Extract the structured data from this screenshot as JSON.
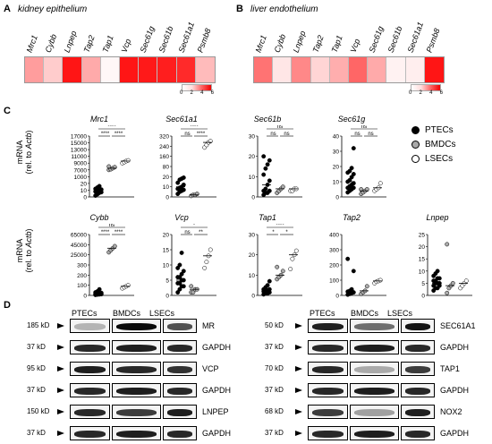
{
  "panels": {
    "A": {
      "letter": "A",
      "title": "kidney epithelium"
    },
    "B": {
      "letter": "B",
      "title": "liver endothelium"
    },
    "C": {
      "letter": "C"
    },
    "D": {
      "letter": "D"
    }
  },
  "heatmap_genes": [
    "Mrc1",
    "Cybb",
    "Lnpep",
    "Tap2",
    "Tap1",
    "Vcp",
    "Sec61g",
    "Sec61b",
    "Sec61a1",
    "Psmb8"
  ],
  "heatmap_kidney": [
    2.3,
    1.2,
    5.5,
    2.0,
    0.2,
    5.5,
    5.4,
    5.3,
    5.0,
    1.6
  ],
  "heatmap_liver": [
    3.3,
    0.6,
    2.8,
    1.0,
    1.9,
    3.6,
    2.0,
    0.3,
    0.4,
    5.5
  ],
  "heat_legend": {
    "ticks": [
      "0",
      "2",
      "4",
      "6"
    ]
  },
  "colors": {
    "heat_max": "#e00000",
    "ptec": "#000000",
    "bmdc": "#aaaaaa",
    "lsec": "#ffffff"
  },
  "ylabel": {
    "line1": "mRNA",
    "line2a": "(rel. to ",
    "line2b": "Actb",
    ")": ")"
  },
  "legend": {
    "ptec": "PTECs",
    "bmdc": "BMDCs",
    "lsec": "LSECs"
  },
  "chart_data": [
    {
      "type": "scatter",
      "title": "Mrc1",
      "ylim": [
        0,
        17000
      ],
      "yticks": [
        "0",
        "10",
        "20",
        "1000",
        "7000",
        "9000",
        "11000",
        "13000",
        "15000",
        "17000"
      ],
      "broken": true,
      "series": [
        {
          "name": "PTECs",
          "values": [
            2,
            4,
            6,
            7,
            8,
            9,
            10,
            11,
            12,
            14,
            16
          ]
        },
        {
          "name": "BMDCs",
          "values": [
            7000,
            7200,
            7500,
            7800,
            8000
          ]
        },
        {
          "name": "LSECs",
          "values": [
            9000,
            9300,
            9600,
            9800
          ]
        }
      ],
      "sig": [
        [
          "****",
          "1",
          "3"
        ],
        [
          "****",
          "1",
          "2"
        ],
        [
          "****",
          "2",
          "3"
        ]
      ]
    },
    {
      "type": "scatter",
      "title": "Sec61a1",
      "ylim": [
        0,
        320
      ],
      "yticks": [
        "0",
        "10",
        "20",
        "80",
        "160",
        "240",
        "320"
      ],
      "broken": true,
      "series": [
        {
          "name": "PTECs",
          "values": [
            3,
            5,
            6,
            7,
            8,
            9,
            10,
            12,
            14,
            17,
            18,
            19
          ]
        },
        {
          "name": "BMDCs",
          "values": [
            1,
            2,
            2,
            3
          ]
        },
        {
          "name": "LSECs",
          "values": [
            230,
            250,
            270,
            280
          ]
        }
      ],
      "sig": [
        [
          "****",
          "1",
          "3"
        ],
        [
          "ns",
          "1",
          "2"
        ],
        [
          "****",
          "2",
          "3"
        ]
      ]
    },
    {
      "type": "scatter",
      "title": "Sec61b",
      "ylim": [
        0,
        30
      ],
      "yticks": [
        "0",
        "10",
        "20",
        "30"
      ],
      "series": [
        {
          "name": "PTECs",
          "values": [
            1,
            2,
            2,
            3,
            3,
            4,
            6,
            8,
            11,
            14,
            16,
            18,
            20
          ]
        },
        {
          "name": "BMDCs",
          "values": [
            2,
            3,
            4,
            5
          ]
        },
        {
          "name": "LSECs",
          "values": [
            3,
            3,
            4,
            4
          ]
        }
      ],
      "sig": [
        [
          "ns",
          "1",
          "3"
        ],
        [
          "ns",
          "1",
          "2"
        ],
        [
          "ns",
          "2",
          "3"
        ]
      ]
    },
    {
      "type": "scatter",
      "title": "Sec61g",
      "ylim": [
        0,
        40
      ],
      "yticks": [
        "0",
        "10",
        "20",
        "30",
        "40"
      ],
      "series": [
        {
          "name": "PTECs",
          "values": [
            3,
            4,
            5,
            6,
            6,
            7,
            8,
            9,
            10,
            11,
            13,
            15,
            16,
            17,
            19,
            32
          ]
        },
        {
          "name": "BMDCs",
          "values": [
            2,
            3,
            4,
            5,
            5
          ]
        },
        {
          "name": "LSECs",
          "values": [
            4,
            5,
            6,
            9
          ]
        }
      ],
      "sig": [
        [
          "ns",
          "1",
          "3"
        ],
        [
          "ns",
          "1",
          "2"
        ],
        [
          "ns",
          "2",
          "3"
        ]
      ]
    },
    {
      "type": "scatter",
      "title": "Cybb",
      "ylim": [
        0,
        65000
      ],
      "yticks": [
        "0",
        "100",
        "200",
        "300",
        "25000",
        "45000",
        "65000"
      ],
      "broken": true,
      "series": [
        {
          "name": "PTECs",
          "values": [
            5,
            8,
            10,
            12,
            15,
            18,
            20,
            25,
            30,
            40,
            60
          ]
        },
        {
          "name": "BMDCs",
          "values": [
            30000,
            34000,
            38000,
            42000
          ]
        },
        {
          "name": "LSECs",
          "values": [
            70,
            80,
            90,
            100
          ]
        }
      ],
      "sig": [
        [
          "ns",
          "1",
          "3"
        ],
        [
          "****",
          "1",
          "2"
        ],
        [
          "****",
          "2",
          "3"
        ]
      ]
    },
    {
      "type": "scatter",
      "title": "Vcp",
      "ylim": [
        0,
        20
      ],
      "yticks": [
        "0",
        "5",
        "10",
        "15",
        "20"
      ],
      "series": [
        {
          "name": "PTECs",
          "values": [
            1,
            2,
            3,
            3,
            4,
            4,
            5,
            5,
            6,
            6,
            7,
            8,
            9,
            10,
            14
          ]
        },
        {
          "name": "BMDCs",
          "values": [
            1,
            1,
            2,
            2,
            3
          ]
        },
        {
          "name": "LSECs",
          "values": [
            9,
            11,
            13,
            15
          ]
        }
      ],
      "sig": [
        [
          "*",
          "1",
          "3"
        ],
        [
          "ns",
          "1",
          "2"
        ],
        [
          "**",
          "2",
          "3"
        ]
      ]
    },
    {
      "type": "scatter",
      "title": "Tap1",
      "ylim": [
        0,
        30
      ],
      "yticks": [
        "0",
        "10",
        "20",
        "30"
      ],
      "series": [
        {
          "name": "PTECs",
          "values": [
            0.5,
            1,
            1,
            1.5,
            2,
            2,
            2.5,
            3,
            3,
            4,
            5,
            7
          ]
        },
        {
          "name": "BMDCs",
          "values": [
            8,
            9,
            10,
            12,
            14
          ]
        },
        {
          "name": "LSECs",
          "values": [
            13,
            18,
            20,
            22
          ]
        }
      ],
      "sig": [
        [
          "****",
          "1",
          "3"
        ],
        [
          "*",
          "1",
          "2"
        ],
        [
          "*",
          "2",
          "3"
        ]
      ]
    },
    {
      "type": "scatter",
      "title": "Tap2",
      "ylim": [
        0,
        400
      ],
      "yticks": [
        "0",
        "100",
        "200",
        "300",
        "400"
      ],
      "series": [
        {
          "name": "PTECs",
          "values": [
            5,
            10,
            15,
            20,
            25,
            30,
            40,
            160,
            240
          ]
        },
        {
          "name": "BMDCs",
          "values": [
            10,
            20,
            30,
            60
          ]
        },
        {
          "name": "LSECs",
          "values": [
            80,
            90,
            95,
            100
          ]
        }
      ],
      "sig": []
    },
    {
      "type": "scatter",
      "title": "Lnpep",
      "ylim": [
        0,
        25
      ],
      "yticks": [
        "0",
        "5",
        "10",
        "15",
        "20",
        "25"
      ],
      "series": [
        {
          "name": "PTECs",
          "values": [
            2,
            3,
            3,
            4,
            4,
            5,
            5,
            5,
            6,
            6,
            7,
            7,
            8,
            9,
            10
          ]
        },
        {
          "name": "BMDCs",
          "values": [
            1,
            3,
            4,
            5,
            21
          ]
        },
        {
          "name": "LSECs",
          "values": [
            3,
            4,
            5,
            6
          ]
        }
      ],
      "sig": []
    }
  ],
  "blots": {
    "lanes": [
      "PTECs",
      "BMDCs",
      "LSECs"
    ],
    "left": [
      {
        "kd": "185 kD",
        "name": "MR",
        "bands": [
          0.1,
          0.95,
          0.6
        ]
      },
      {
        "kd": "37 kD",
        "name": "GAPDH",
        "bands": [
          0.8,
          0.85,
          0.8
        ]
      },
      {
        "kd": "95 kD",
        "name": "VCP",
        "bands": [
          0.85,
          0.8,
          0.75
        ]
      },
      {
        "kd": "37 kD",
        "name": "GAPDH",
        "bands": [
          0.8,
          0.85,
          0.8
        ]
      },
      {
        "kd": "150 kD",
        "name": "LNPEP",
        "bands": [
          0.8,
          0.7,
          0.85
        ]
      },
      {
        "kd": "37 kD",
        "name": "GAPDH",
        "bands": [
          0.8,
          0.85,
          0.8
        ]
      }
    ],
    "right": [
      {
        "kd": "50 kD",
        "name": "SEC61A1",
        "bands": [
          0.85,
          0.45,
          0.9
        ]
      },
      {
        "kd": "37 kD",
        "name": "GAPDH",
        "bands": [
          0.8,
          0.85,
          0.8
        ]
      },
      {
        "kd": "70 kD",
        "name": "TAP1",
        "bands": [
          0.8,
          0.15,
          0.7
        ]
      },
      {
        "kd": "37 kD",
        "name": "GAPDH",
        "bands": [
          0.8,
          0.85,
          0.8
        ]
      },
      {
        "kd": "68 kD",
        "name": "NOX2",
        "bands": [
          0.7,
          0.2,
          0.85
        ]
      },
      {
        "kd": "37 kD",
        "name": "GAPDH",
        "bands": [
          0.8,
          0.85,
          0.8
        ]
      }
    ]
  }
}
